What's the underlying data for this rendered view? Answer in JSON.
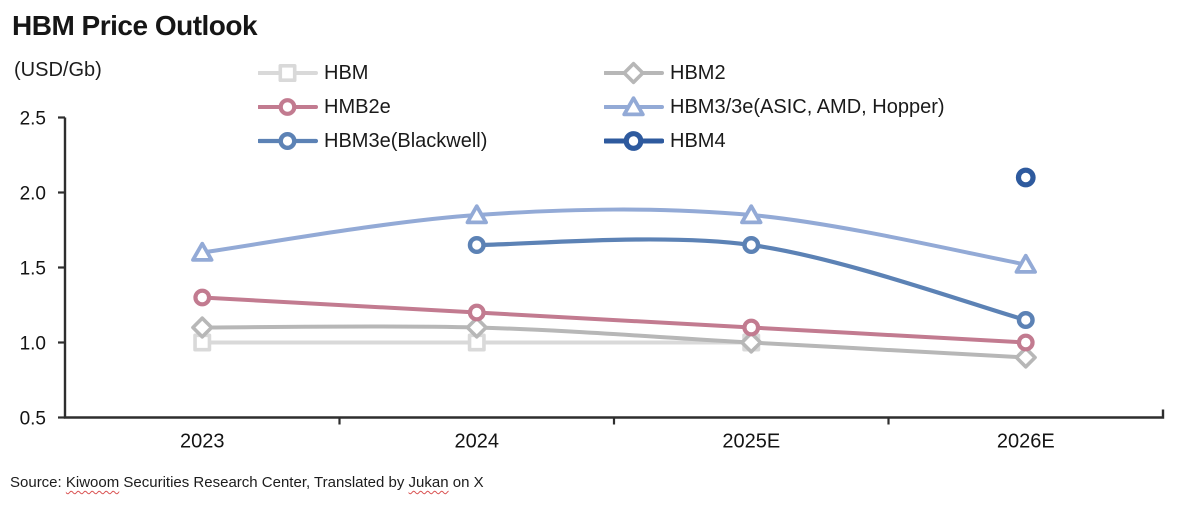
{
  "title": "HBM Price Outlook",
  "y_axis_unit": "(USD/Gb)",
  "source": {
    "prefix": "Source: ",
    "misspelled_word_1": "Kiwoom",
    "middle": " Securities Research Center, Translated by ",
    "misspelled_word_2": "Jukan",
    "suffix": " on X"
  },
  "chart_data": {
    "type": "line",
    "title": "HBM Price Outlook",
    "ylabel": "(USD/Gb)",
    "xlabel": "",
    "categories": [
      "2023",
      "2024",
      "2025E",
      "2026E"
    ],
    "series": [
      {
        "name": "HBM",
        "values": [
          1.0,
          1.0,
          1.0,
          null
        ],
        "color": "#d9d9d9",
        "marker": "square",
        "line_width": 4,
        "marker_stroke": 3.6
      },
      {
        "name": "HBM2",
        "values": [
          1.1,
          1.1,
          1.0,
          0.9
        ],
        "color": "#b7b7b7",
        "marker": "diamond",
        "line_width": 4,
        "marker_stroke": 3.6
      },
      {
        "name": "HMB2e",
        "values": [
          1.3,
          1.2,
          1.1,
          1.0
        ],
        "color": "#c27b90",
        "marker": "circle",
        "line_width": 4,
        "marker_stroke": 4.2
      },
      {
        "name": "HBM3/3e(ASIC, AMD, Hopper)",
        "values": [
          1.6,
          1.85,
          1.85,
          1.52
        ],
        "color": "#93aad6",
        "marker": "triangle",
        "line_width": 4,
        "marker_stroke": 3.8
      },
      {
        "name": "HBM3e(Blackwell)",
        "values": [
          null,
          1.65,
          1.65,
          1.15
        ],
        "color": "#5c82b5",
        "marker": "circle",
        "line_width": 4.2,
        "marker_stroke": 4.4
      },
      {
        "name": "HBM4",
        "values": [
          null,
          null,
          null,
          2.1
        ],
        "color": "#2e5a9e",
        "marker": "circle",
        "line_width": 5,
        "marker_stroke": 5.2
      }
    ],
    "ylim": [
      0.5,
      2.5
    ],
    "ytick_labels": [
      "0.5",
      "1.0",
      "1.5",
      "2.0",
      "2.5"
    ],
    "grid": false,
    "legend_position": "top",
    "legend_columns": [
      [
        0,
        2,
        4
      ],
      [
        1,
        3,
        5
      ]
    ],
    "axis_color": "#2e2e2e",
    "tick_label_color": "#141414"
  }
}
